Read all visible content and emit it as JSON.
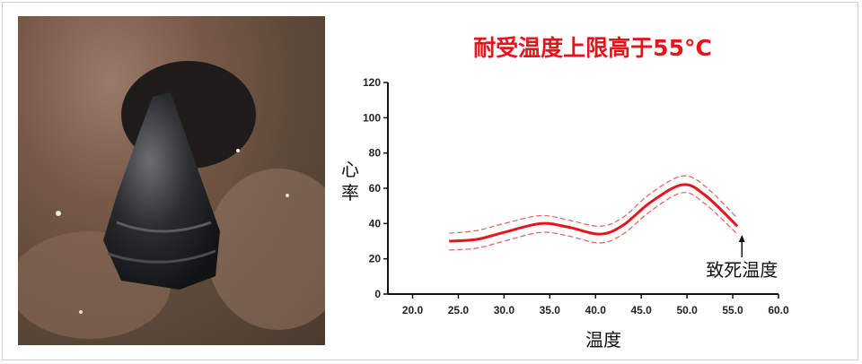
{
  "photo": {
    "subject": "snail on rock"
  },
  "title": "耐受温度上限高于55°C",
  "colors": {
    "title": "#e8141c",
    "line": "#e8141c",
    "ci": "#e06060"
  },
  "chart_data": {
    "type": "line",
    "title": "耐受温度上限高于55°C",
    "xlabel": "温度",
    "ylabel": "心率",
    "xlim": [
      17.3,
      60.0
    ],
    "ylim": [
      0,
      120
    ],
    "xticks": [
      "20.0",
      "25.0",
      "30.0",
      "35.0",
      "40.0",
      "45.0",
      "50.0",
      "55.0",
      "60.0"
    ],
    "yticks": [
      "0",
      "20",
      "40",
      "60",
      "80",
      "100",
      "120"
    ],
    "grid": false,
    "series": [
      {
        "role": "mean",
        "style": "solid",
        "x": [
          24,
          27,
          30,
          34,
          37,
          40.5,
          43,
          46,
          49.5,
          52,
          55.5
        ],
        "y": [
          30,
          31,
          35,
          40,
          38,
          34,
          39,
          52,
          62,
          56,
          38.5
        ]
      },
      {
        "role": "upper",
        "style": "dashed",
        "x": [
          24,
          27,
          30,
          34,
          37,
          40.5,
          43,
          46,
          49.5,
          52,
          55.5
        ],
        "y": [
          34.5,
          36,
          40,
          44.5,
          42,
          38.5,
          43.5,
          57,
          67,
          61,
          43
        ]
      },
      {
        "role": "lower",
        "style": "dashed",
        "x": [
          24,
          27,
          30,
          34,
          37,
          40.5,
          43,
          46,
          49.5,
          52,
          55.5
        ],
        "y": [
          25,
          26,
          30,
          35,
          33,
          29,
          34,
          47,
          57.5,
          51,
          34
        ]
      }
    ],
    "annotations": [
      {
        "text": "致死温度",
        "x": 56,
        "arrow": "up"
      }
    ]
  }
}
